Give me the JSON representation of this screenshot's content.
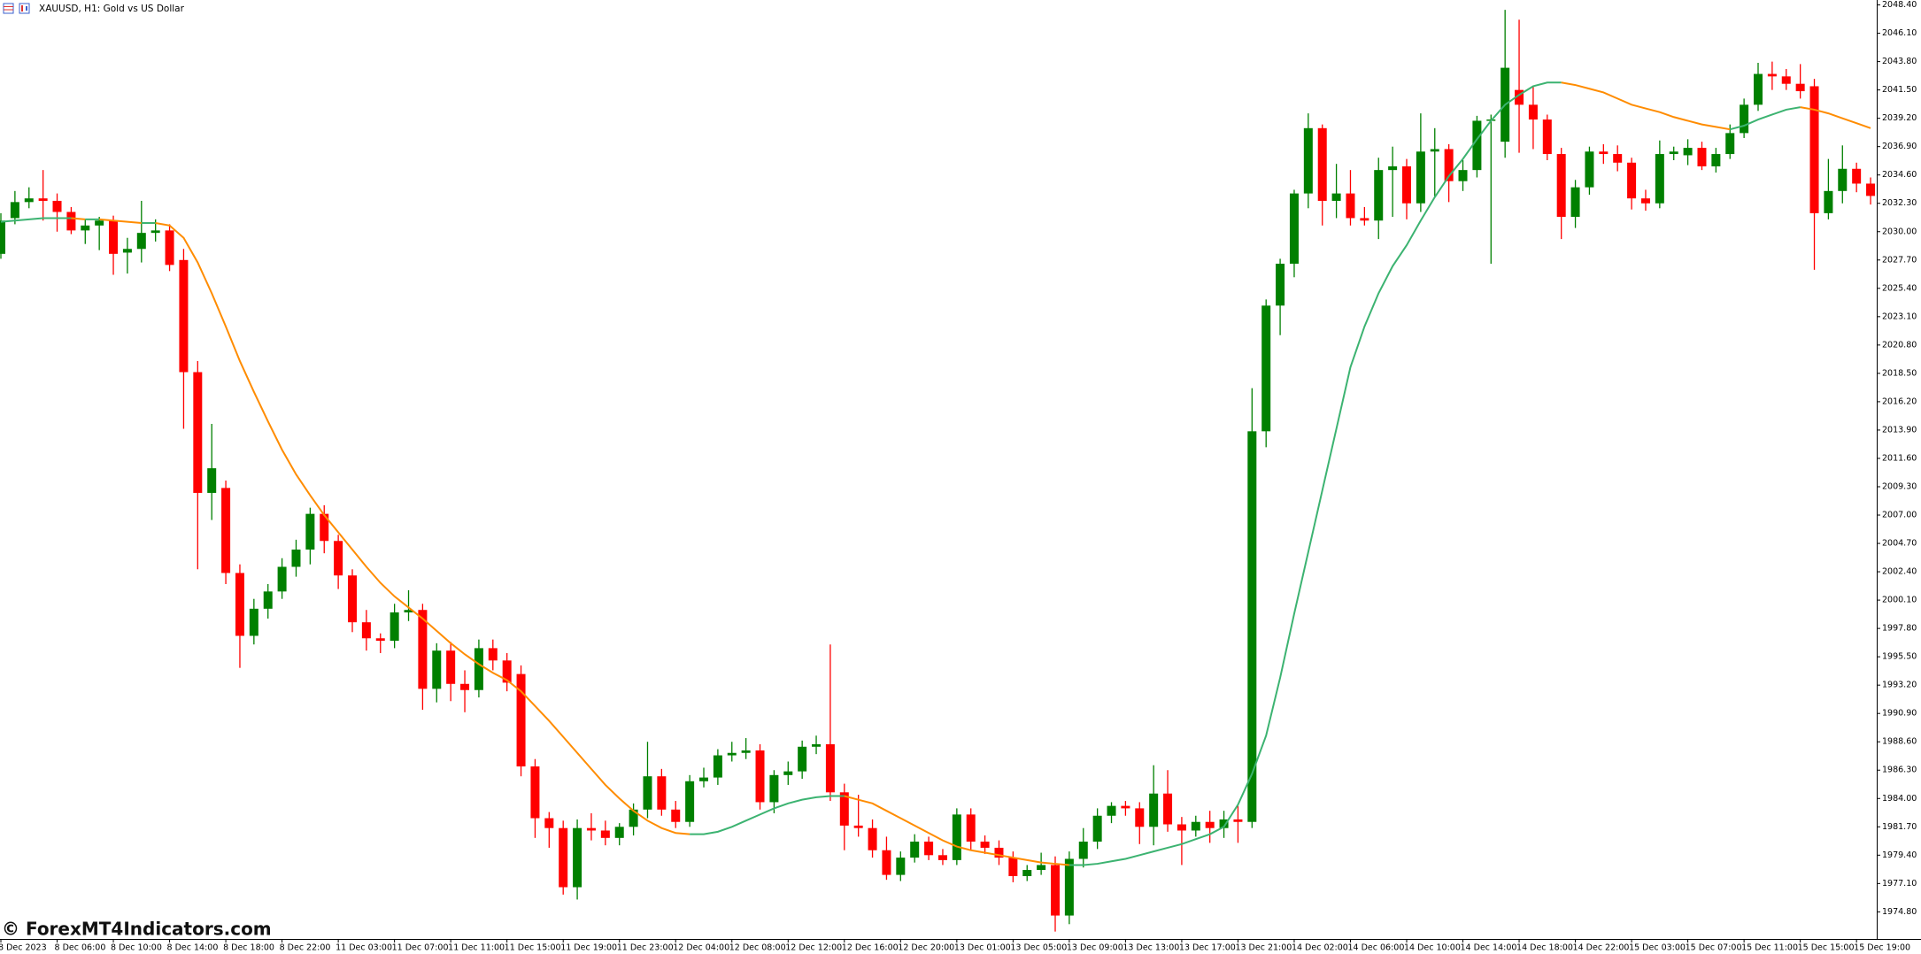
{
  "chart_data": {
    "type": "candlestick",
    "title": "XAUUSD, H1:  Gold vs US Dollar",
    "watermark": "© ForexMT4Indicators.com",
    "bull_color": "#008000",
    "bear_color": "#ff0000",
    "ylim": [
      1972.6,
      2048.8
    ],
    "yticks": [
      {
        "value": 2048.4,
        "label": "2048.40"
      },
      {
        "value": 2046.1,
        "label": "2046.10"
      },
      {
        "value": 2043.8,
        "label": "2043.80"
      },
      {
        "value": 2041.5,
        "label": "2041.50"
      },
      {
        "value": 2039.2,
        "label": "2039.20"
      },
      {
        "value": 2036.9,
        "label": "2036.90"
      },
      {
        "value": 2034.6,
        "label": "2034.60"
      },
      {
        "value": 2032.3,
        "label": "2032.30"
      },
      {
        "value": 2030,
        "label": "2030.00"
      },
      {
        "value": 2027.7,
        "label": "2027.70"
      },
      {
        "value": 2025.4,
        "label": "2025.40"
      },
      {
        "value": 2023.1,
        "label": "2023.10"
      },
      {
        "value": 2020.8,
        "label": "2020.80"
      },
      {
        "value": 2018.5,
        "label": "2018.50"
      },
      {
        "value": 2016.2,
        "label": "2016.20"
      },
      {
        "value": 2013.9,
        "label": "2013.90"
      },
      {
        "value": 2011.6,
        "label": "2011.60"
      },
      {
        "value": 2009.3,
        "label": "2009.30"
      },
      {
        "value": 2007,
        "label": "2007.00"
      },
      {
        "value": 2004.7,
        "label": "2004.70"
      },
      {
        "value": 2002.4,
        "label": "2002.40"
      },
      {
        "value": 2000.1,
        "label": "2000.10"
      },
      {
        "value": 1997.8,
        "label": "1997.80"
      },
      {
        "value": 1995.5,
        "label": "1995.50"
      },
      {
        "value": 1993.2,
        "label": "1993.20"
      },
      {
        "value": 1990.9,
        "label": "1990.90"
      },
      {
        "value": 1988.6,
        "label": "1988.60"
      },
      {
        "value": 1986.3,
        "label": "1986.30"
      },
      {
        "value": 1984,
        "label": "1984.00"
      },
      {
        "value": 1981.7,
        "label": "1981.70"
      },
      {
        "value": 1979.4,
        "label": "1979.40"
      },
      {
        "value": 1977.1,
        "label": "1977.10"
      },
      {
        "value": 1974.8,
        "label": "1974.80"
      }
    ],
    "x_labels": [
      "8 Dec 2023",
      "8 Dec 06:00",
      "8 Dec 10:00",
      "8 Dec 14:00",
      "8 Dec 18:00",
      "8 Dec 22:00",
      "11 Dec 03:00",
      "11 Dec 07:00",
      "11 Dec 11:00",
      "11 Dec 15:00",
      "11 Dec 19:00",
      "11 Dec 23:00",
      "12 Dec 04:00",
      "12 Dec 08:00",
      "12 Dec 12:00",
      "12 Dec 16:00",
      "12 Dec 20:00",
      "13 Dec 01:00",
      "13 Dec 05:00",
      "13 Dec 09:00",
      "13 Dec 13:00",
      "13 Dec 17:00",
      "13 Dec 21:00",
      "14 Dec 02:00",
      "14 Dec 06:00",
      "14 Dec 10:00",
      "14 Dec 14:00",
      "14 Dec 18:00",
      "14 Dec 22:00",
      "15 Dec 03:00",
      "15 Dec 07:00",
      "15 Dec 11:00",
      "15 Dec 15:00",
      "15 Dec 19:00"
    ],
    "open": [
      2028.2,
      2031.1,
      2032.4,
      2032.7,
      2032.5,
      2031.6,
      2030.1,
      2030.5,
      2030.9,
      2028.3,
      2028.6,
      2029.9,
      2030.1,
      2027.7,
      2018.6,
      2008.8,
      2009.2,
      2002.3,
      1997.2,
      1999.4,
      2000.8,
      2002.8,
      2004.2,
      2007.1,
      2004.9,
      2002.1,
      1998.3,
      1997.0,
      1996.8,
      1999.1,
      1999.3,
      1992.9,
      1996.0,
      1993.3,
      1992.8,
      1996.2,
      1995.2,
      1994.1,
      1986.6,
      1982.4,
      1981.6,
      1976.8,
      1981.6,
      1981.4,
      1980.8,
      1981.7,
      1983.1,
      1985.8,
      1983.1,
      1982.1,
      1985.4,
      1985.7,
      1987.5,
      1987.7,
      1987.9,
      1983.7,
      1985.9,
      1986.2,
      1988.2,
      1988.4,
      1984.5,
      1981.8,
      1981.6,
      1979.8,
      1977.8,
      1979.2,
      1980.5,
      1979.4,
      1979.0,
      1982.7,
      1980.5,
      1980.0,
      1979.2,
      1977.7,
      1978.2,
      1978.6,
      1974.5,
      1979.1,
      1980.5,
      1982.6,
      1983.4,
      1983.2,
      1981.7,
      1984.4,
      1981.9,
      1981.4,
      1982.1,
      1981.6,
      1982.3,
      1982.1,
      2013.8,
      2024.0,
      2027.4,
      2033.1,
      2038.4,
      2032.5,
      2033.1,
      2031.1,
      2030.9,
      2035.0,
      2035.3,
      2032.3,
      2036.5,
      2036.7,
      2034.1,
      2035.0,
      2039.0,
      2037.3,
      2041.5,
      2040.3,
      2039.1,
      2036.3,
      2031.2,
      2033.6,
      2036.5,
      2036.3,
      2035.6,
      2032.7,
      2032.3,
      2036.3,
      2036.2,
      2036.8,
      2035.3,
      2036.3,
      2038.0,
      2040.3,
      2042.8,
      2042.6,
      2042.0,
      2041.8,
      2031.5,
      2033.3,
      2035.1,
      2033.9
    ],
    "high": [
      2031.5,
      2033.3,
      2033.6,
      2035.0,
      2033.1,
      2032.0,
      2031.0,
      2031.2,
      2031.3,
      2029.5,
      2032.5,
      2031.0,
      2030.6,
      2028.6,
      2019.5,
      2014.4,
      2009.8,
      2003.0,
      2000.2,
      2001.4,
      2003.5,
      2005.0,
      2007.6,
      2007.8,
      2005.4,
      2002.6,
      1999.3,
      1997.4,
      1999.8,
      2000.9,
      1999.8,
      1996.6,
      1996.7,
      1994.4,
      1996.9,
      1996.9,
      1995.8,
      1994.8,
      1987.2,
      1982.9,
      1982.2,
      1982.3,
      1982.8,
      1982.2,
      1982.0,
      1983.6,
      1988.6,
      1986.4,
      1983.8,
      1985.9,
      1986.5,
      1988.0,
      1988.6,
      1988.9,
      1988.4,
      1986.3,
      1987.0,
      1988.7,
      1989.1,
      1996.5,
      1985.2,
      1984.3,
      1982.3,
      1980.9,
      1979.7,
      1981.1,
      1980.9,
      1979.9,
      1983.2,
      1983.2,
      1981.0,
      1980.6,
      1979.7,
      1978.6,
      1979.6,
      1979.3,
      1979.7,
      1981.6,
      1983.2,
      1983.7,
      1983.8,
      1983.7,
      1986.7,
      1986.3,
      1982.5,
      1982.6,
      1983.0,
      1983.0,
      1983.4,
      2017.3,
      2024.5,
      2027.8,
      2033.4,
      2039.6,
      2038.7,
      2035.5,
      2035.0,
      2032.0,
      2036.0,
      2036.9,
      2035.9,
      2039.6,
      2038.4,
      2037.1,
      2035.8,
      2039.4,
      2039.5,
      2048.0,
      2047.2,
      2041.8,
      2039.5,
      2036.8,
      2034.2,
      2036.9,
      2037.1,
      2037.0,
      2036.0,
      2033.4,
      2037.4,
      2036.9,
      2037.5,
      2037.3,
      2036.8,
      2038.7,
      2040.8,
      2043.7,
      2043.8,
      2043.2,
      2043.6,
      2042.4,
      2035.9,
      2037.0,
      2035.6,
      2034.4
    ],
    "low": [
      2027.8,
      2030.6,
      2031.9,
      2030.9,
      2030.0,
      2029.8,
      2029.0,
      2028.5,
      2026.5,
      2026.6,
      2027.5,
      2029.2,
      2026.8,
      2014.0,
      2002.6,
      2006.6,
      2001.4,
      1994.6,
      1996.5,
      1998.6,
      2000.2,
      2002.0,
      2003.0,
      2003.9,
      2001.0,
      1997.5,
      1996.0,
      1995.8,
      1996.2,
      1998.4,
      1991.2,
      1991.8,
      1991.9,
      1991.0,
      1992.2,
      1994.4,
      1992.7,
      1985.8,
      1980.8,
      1980.0,
      1976.2,
      1975.8,
      1980.6,
      1980.2,
      1980.2,
      1981.0,
      1982.4,
      1982.6,
      1981.6,
      1981.7,
      1984.9,
      1985.1,
      1987.0,
      1987.2,
      1983.1,
      1982.8,
      1985.1,
      1985.6,
      1987.6,
      1983.8,
      1979.8,
      1980.9,
      1979.2,
      1977.4,
      1977.3,
      1978.8,
      1979.0,
      1978.6,
      1978.6,
      1979.8,
      1979.5,
      1978.6,
      1977.2,
      1977.3,
      1977.8,
      1973.2,
      1973.8,
      1978.4,
      1979.9,
      1982.0,
      1982.6,
      1980.3,
      1980.2,
      1981.3,
      1978.6,
      1980.9,
      1980.4,
      1980.8,
      1980.4,
      1981.6,
      2012.5,
      2021.6,
      2026.3,
      2031.9,
      2030.5,
      2031.1,
      2030.5,
      2030.5,
      2029.4,
      2031.2,
      2031.0,
      2031.6,
      2032.8,
      2032.4,
      2033.3,
      2034.4,
      2027.4,
      2036.0,
      2036.4,
      2036.7,
      2035.8,
      2029.4,
      2030.3,
      2033.0,
      2035.5,
      2034.9,
      2031.8,
      2031.7,
      2031.9,
      2035.8,
      2035.4,
      2035.0,
      2034.8,
      2035.9,
      2037.6,
      2039.8,
      2041.5,
      2041.5,
      2040.8,
      2026.9,
      2031.0,
      2032.3,
      2033.2,
      2032.2
    ],
    "close": [
      2030.9,
      2032.4,
      2032.7,
      2032.5,
      2031.6,
      2030.1,
      2030.5,
      2030.9,
      2028.2,
      2028.6,
      2029.9,
      2030.1,
      2027.3,
      2018.6,
      2008.8,
      2010.8,
      2002.3,
      1997.2,
      1999.4,
      2000.8,
      2002.8,
      2004.2,
      2007.1,
      2004.9,
      2002.1,
      1998.3,
      1997.0,
      1996.8,
      1999.1,
      1999.3,
      1992.9,
      1996.0,
      1993.3,
      1992.8,
      1996.2,
      1995.2,
      1993.4,
      1986.6,
      1982.4,
      1981.6,
      1976.8,
      1981.6,
      1981.4,
      1980.8,
      1981.7,
      1983.1,
      1985.8,
      1983.1,
      1982.1,
      1985.4,
      1985.7,
      1987.5,
      1987.7,
      1987.9,
      1983.7,
      1985.9,
      1986.2,
      1988.2,
      1988.4,
      1984.5,
      1981.8,
      1981.6,
      1979.8,
      1977.8,
      1979.2,
      1980.5,
      1979.4,
      1979.0,
      1982.7,
      1980.5,
      1980.0,
      1979.2,
      1977.7,
      1978.2,
      1978.6,
      1974.5,
      1979.1,
      1980.5,
      1982.6,
      1983.4,
      1983.2,
      1981.7,
      1984.4,
      1981.9,
      1981.4,
      1982.1,
      1981.6,
      1982.3,
      1982.1,
      2013.8,
      2024.0,
      2027.4,
      2033.1,
      2038.4,
      2032.5,
      2033.1,
      2031.1,
      2030.9,
      2035.0,
      2035.3,
      2032.3,
      2036.5,
      2036.7,
      2034.1,
      2035.0,
      2039.0,
      2039.1,
      2043.3,
      2040.3,
      2039.1,
      2036.3,
      2031.2,
      2033.6,
      2036.5,
      2036.3,
      2035.6,
      2032.7,
      2032.3,
      2036.3,
      2036.5,
      2036.8,
      2035.3,
      2036.3,
      2038.0,
      2040.3,
      2042.8,
      2042.6,
      2042.0,
      2041.4,
      2031.5,
      2033.3,
      2035.1,
      2033.9,
      2032.9
    ],
    "ma": {
      "rising_color": "#3cb371",
      "falling_color": "#ff8c00",
      "values": [
        2030.8,
        2030.9,
        2031.0,
        2031.1,
        2031.1,
        2031.1,
        2031.0,
        2031.0,
        2030.9,
        2030.8,
        2030.7,
        2030.7,
        2030.5,
        2029.5,
        2027.5,
        2025.0,
        2022.3,
        2019.5,
        2017.0,
        2014.6,
        2012.3,
        2010.3,
        2008.6,
        2007.0,
        2005.6,
        2004.2,
        2002.8,
        2001.5,
        2000.4,
        1999.5,
        1998.6,
        1997.6,
        1996.6,
        1995.7,
        1994.9,
        1994.2,
        1993.6,
        1992.7,
        1991.5,
        1990.3,
        1989.0,
        1987.7,
        1986.4,
        1985.1,
        1984.0,
        1983.0,
        1982.2,
        1981.6,
        1981.2,
        1981.1,
        1981.1,
        1981.3,
        1981.7,
        1982.2,
        1982.7,
        1983.2,
        1983.6,
        1983.9,
        1984.1,
        1984.2,
        1984.2,
        1983.9,
        1983.6,
        1983.0,
        1982.4,
        1981.8,
        1981.2,
        1980.6,
        1980.1,
        1979.8,
        1979.6,
        1979.4,
        1979.2,
        1979.0,
        1978.8,
        1978.7,
        1978.6,
        1978.6,
        1978.7,
        1978.9,
        1979.1,
        1979.4,
        1979.7,
        1980.0,
        1980.3,
        1980.7,
        1981.1,
        1981.7,
        1983.5,
        1986.0,
        1989.1,
        1993.8,
        1999.0,
        2004.0,
        2009.0,
        2014.0,
        2019.0,
        2022.3,
        2025.0,
        2027.2,
        2028.9,
        2030.9,
        2032.8,
        2034.5,
        2035.9,
        2037.5,
        2039.0,
        2040.3,
        2041.1,
        2041.8,
        2042.1,
        2042.1,
        2041.9,
        2041.6,
        2041.3,
        2040.8,
        2040.3,
        2040.0,
        2039.7,
        2039.3,
        2039.0,
        2038.7,
        2038.5,
        2038.3,
        2038.6,
        2039.1,
        2039.5,
        2039.9,
        2040.1,
        2039.9,
        2039.6,
        2039.2,
        2038.8,
        2038.4
      ]
    }
  }
}
